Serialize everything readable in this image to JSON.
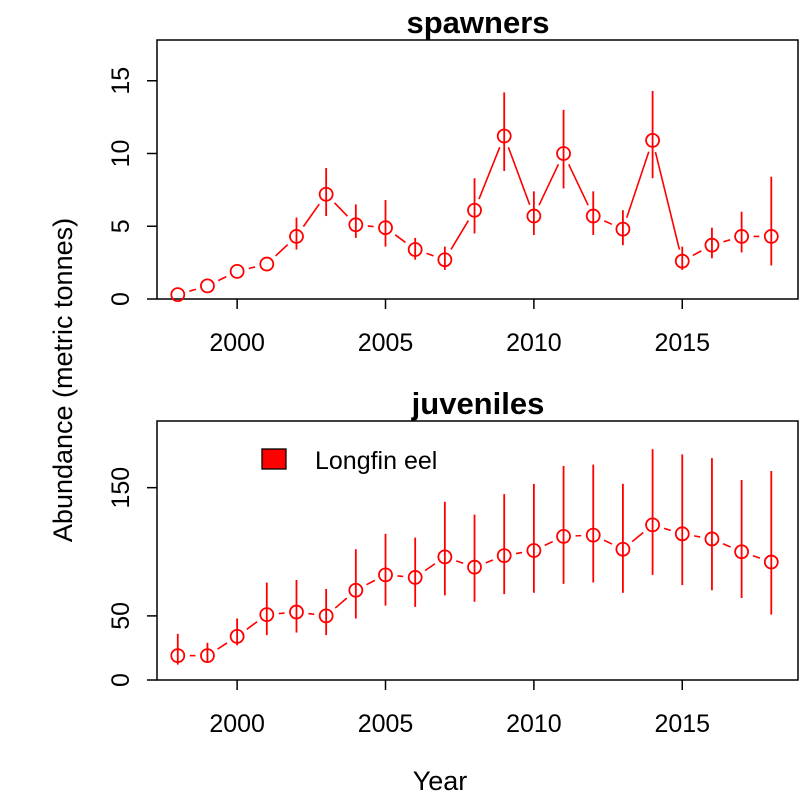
{
  "chart_data": {
    "type": "scatter",
    "xlabel": "Year",
    "ylabel": "Abundance (metric tonnes)",
    "color": "#ff0000",
    "legend": {
      "label": "Longfin eel",
      "color": "#ff0000",
      "placement": "top-left"
    },
    "x_ticks": [
      "2000",
      "2005",
      "2010",
      "2015"
    ],
    "panels": [
      {
        "title": "spawners",
        "xlim": [
          1997.3,
          2018.9
        ],
        "ylim": [
          0,
          17.8
        ],
        "y_ticks": [
          "0",
          "5",
          "10",
          "15"
        ],
        "y_tick_values": [
          0,
          5,
          10,
          15
        ],
        "x": [
          1998,
          1999,
          2000,
          2001,
          2002,
          2003,
          2004,
          2005,
          2006,
          2007,
          2008,
          2009,
          2010,
          2011,
          2012,
          2013,
          2014,
          2015,
          2016,
          2017,
          2018
        ],
        "values": [
          0.3,
          0.9,
          1.9,
          2.4,
          4.3,
          7.2,
          5.1,
          4.9,
          3.4,
          2.7,
          6.1,
          11.2,
          5.7,
          10.0,
          5.7,
          4.8,
          10.9,
          2.6,
          3.7,
          4.3,
          4.3
        ],
        "lower": [
          0.3,
          0.9,
          1.9,
          2.4,
          3.4,
          5.7,
          4.2,
          3.6,
          2.7,
          2.0,
          4.5,
          8.8,
          4.4,
          7.6,
          4.4,
          3.7,
          8.3,
          2.0,
          2.8,
          3.2,
          2.3
        ],
        "upper": [
          0.3,
          0.9,
          1.9,
          2.4,
          5.6,
          9.0,
          6.5,
          6.8,
          4.2,
          3.6,
          8.3,
          14.2,
          7.4,
          13.0,
          7.4,
          6.1,
          14.3,
          3.6,
          4.9,
          6.0,
          8.4
        ]
      },
      {
        "title": "juveniles",
        "xlim": [
          1997.3,
          2018.9
        ],
        "ylim": [
          0,
          202
        ],
        "y_ticks": [
          "0",
          "50",
          "150"
        ],
        "y_tick_values": [
          0,
          50,
          150
        ],
        "x": [
          1998,
          1999,
          2000,
          2001,
          2002,
          2003,
          2004,
          2005,
          2006,
          2007,
          2008,
          2009,
          2010,
          2011,
          2012,
          2013,
          2014,
          2015,
          2016,
          2017,
          2018
        ],
        "values": [
          19,
          19,
          34,
          51,
          53,
          50,
          70,
          82,
          80,
          96,
          88,
          97,
          101,
          112,
          113,
          102,
          121,
          114,
          110,
          100,
          92
        ],
        "lower": [
          12,
          14,
          27,
          35,
          37,
          35,
          48,
          58,
          57,
          66,
          61,
          67,
          68,
          75,
          76,
          68,
          82,
          74,
          70,
          64,
          51
        ],
        "upper": [
          36,
          29,
          48,
          76,
          78,
          71,
          102,
          114,
          111,
          139,
          129,
          145,
          153,
          167,
          168,
          153,
          180,
          176,
          173,
          156,
          163
        ]
      }
    ]
  }
}
